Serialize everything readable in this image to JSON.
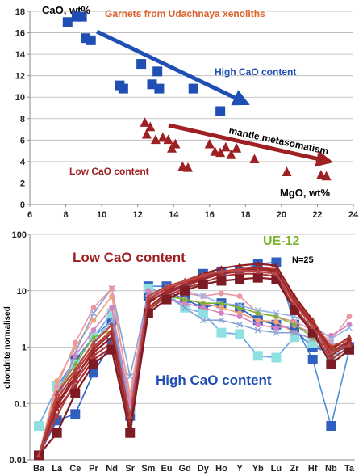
{
  "chart_data": [
    {
      "type": "scatter",
      "title": "Garnets from Udachnaya xenoliths",
      "ylabel": "CaO, wt%",
      "xlabel": "MgO, wt%",
      "xlim": [
        6,
        24
      ],
      "ylim": [
        0,
        18
      ],
      "xticks": [
        "6",
        "8",
        "10",
        "12",
        "14",
        "16",
        "18",
        "20",
        "22",
        "24"
      ],
      "yticks": [
        "0",
        "2",
        "4",
        "6",
        "8",
        "10",
        "12",
        "14",
        "16",
        "18"
      ],
      "grid": "horizontal",
      "annotations": {
        "high": "High CaO content",
        "low": "Low CaO content",
        "trend": "mantle metasomatism"
      },
      "series": [
        {
          "name": "High CaO content",
          "color": "#1f4fb4",
          "marker": "square",
          "points": [
            [
              8.1,
              17.0
            ],
            [
              8.6,
              17.5
            ],
            [
              8.9,
              17.5
            ],
            [
              9.1,
              15.5
            ],
            [
              9.4,
              15.3
            ],
            [
              11.0,
              11.1
            ],
            [
              11.2,
              10.8
            ],
            [
              12.2,
              13.1
            ],
            [
              12.8,
              11.2
            ],
            [
              13.1,
              12.4
            ],
            [
              13.2,
              10.8
            ],
            [
              15.1,
              10.8
            ],
            [
              16.6,
              8.7
            ]
          ]
        },
        {
          "name": "Low CaO content",
          "color": "#9e2023",
          "marker": "triangle",
          "points": [
            [
              12.4,
              7.6
            ],
            [
              12.5,
              6.5
            ],
            [
              12.7,
              7.2
            ],
            [
              13.0,
              6.0
            ],
            [
              13.4,
              6.2
            ],
            [
              13.7,
              6.0
            ],
            [
              13.9,
              5.2
            ],
            [
              14.1,
              5.6
            ],
            [
              14.5,
              3.5
            ],
            [
              14.8,
              3.4
            ],
            [
              16.0,
              5.6
            ],
            [
              16.3,
              4.9
            ],
            [
              16.6,
              4.8
            ],
            [
              16.9,
              5.3
            ],
            [
              17.2,
              4.6
            ],
            [
              17.5,
              5.2
            ],
            [
              18.5,
              4.2
            ],
            [
              20.3,
              3.0
            ],
            [
              22.2,
              2.7
            ],
            [
              22.5,
              2.6
            ]
          ]
        }
      ]
    },
    {
      "type": "line",
      "yscale": "log",
      "ylabel": "chondrite normalised",
      "ylim": [
        0.01,
        100
      ],
      "yticks": [
        "0.01",
        "0.1",
        "1",
        "10",
        "100"
      ],
      "grid": "horizontal",
      "categories": [
        "Ba",
        "La",
        "Ce",
        "Pr",
        "Nd",
        "Sr",
        "Sm",
        "Eu",
        "Gd",
        "Dy",
        "Ho",
        "Y",
        "Yb",
        "Lu",
        "Zr",
        "Hf",
        "Nb",
        "Ta"
      ],
      "annotations": {
        "low": "Low CaO content",
        "high": "High CaO content",
        "sample": "UE-12",
        "count": "N=25"
      },
      "series": [
        {
          "group": "low",
          "marker": "triangle",
          "values": [
            0.012,
            0.08,
            0.2,
            0.6,
            1.0,
            0.035,
            5,
            9,
            12,
            16,
            20,
            22,
            24,
            22,
            6,
            2.5,
            0.7,
            1.2
          ]
        },
        {
          "group": "low",
          "marker": "triangle",
          "values": [
            0.012,
            0.1,
            0.3,
            0.8,
            1.5,
            0.04,
            6,
            10,
            15,
            20,
            25,
            28,
            30,
            28,
            8,
            3,
            0.9,
            1.5
          ]
        },
        {
          "group": "low",
          "marker": "triangle",
          "values": [
            0.012,
            0.06,
            0.25,
            0.7,
            1.2,
            0.03,
            4.5,
            8,
            11,
            14,
            18,
            20,
            20,
            18,
            5,
            2,
            0.6,
            1.0
          ]
        },
        {
          "group": "low",
          "marker": "triangle",
          "values": [
            0.012,
            0.12,
            0.35,
            1.0,
            2.0,
            0.05,
            7,
            11,
            14,
            18,
            22,
            24,
            26,
            24,
            7,
            2.8,
            1.0,
            1.4
          ]
        },
        {
          "group": "low",
          "marker": "triangle",
          "values": [
            0.012,
            0.09,
            0.28,
            0.9,
            1.8,
            0.045,
            6.5,
            9.5,
            13,
            17,
            21,
            23,
            25,
            23,
            6.5,
            2.6,
            0.8,
            1.3
          ]
        },
        {
          "group": "low",
          "marker": "square",
          "values": [
            0.012,
            0.03,
            0.15,
            0.5,
            0.9,
            0.03,
            4,
            7,
            10,
            13,
            15,
            16,
            17,
            16,
            4.5,
            1.8,
            0.5,
            0.9
          ]
        },
        {
          "group": "low",
          "marker": "triangle",
          "values": [
            0.012,
            0.15,
            0.4,
            1.2,
            2.5,
            0.06,
            8,
            12,
            15,
            19,
            22,
            23,
            22,
            20,
            6,
            2.3,
            0.8,
            1.1
          ]
        },
        {
          "group": "high",
          "marker": "square",
          "values": [
            0.012,
            0.2,
            0.6,
            1.5,
            3,
            0.09,
            12,
            12,
            10,
            20,
            22,
            22,
            30,
            32,
            2.5,
            0.6,
            0.04,
            0.9
          ]
        },
        {
          "group": "high",
          "marker": "square",
          "values": [
            0.012,
            0.05,
            0.065,
            0.35,
            1.2,
            0.06,
            8,
            10,
            7,
            5,
            6,
            5,
            3,
            2.5,
            2,
            1,
            0.8,
            1.0
          ]
        },
        {
          "group": "high",
          "marker": "square",
          "values": [
            0.04,
            0.2,
            0.5,
            1.5,
            4,
            0.08,
            11,
            9,
            5,
            4,
            1.8,
            1.7,
            0.7,
            0.65,
            1.5,
            1.2,
            0.7,
            0.9
          ]
        },
        {
          "group": "high",
          "marker": "circle",
          "values": [
            0.012,
            0.25,
            1.0,
            3,
            8,
            0.15,
            10,
            9,
            7,
            6,
            5,
            4,
            3,
            2.8,
            1.8,
            1.4,
            1.1,
            1.0
          ]
        },
        {
          "group": "high",
          "marker": "cross",
          "values": [
            0.012,
            0.1,
            0.8,
            4,
            11,
            0.3,
            9,
            8,
            5,
            3,
            3,
            2.5,
            2,
            1.8,
            1.8,
            1.4,
            1.2,
            1.0
          ]
        },
        {
          "group": "high",
          "marker": "circle",
          "values": [
            0.012,
            0.2,
            1.2,
            5,
            11,
            0.12,
            8,
            10,
            9,
            8,
            9,
            8,
            4,
            3.5,
            2.8,
            2,
            1.3,
            3.5
          ]
        },
        {
          "group": "high",
          "marker": "circle",
          "values": [
            0.012,
            0.15,
            0.7,
            2,
            5,
            0.1,
            10,
            7,
            6,
            5,
            4,
            3.5,
            2.5,
            2.2,
            2.4,
            1.8,
            1.6,
            2.5
          ]
        },
        {
          "group": "high",
          "marker": "cross",
          "values": [
            0.012,
            0.08,
            0.4,
            1.2,
            3,
            0.05,
            7,
            12,
            10,
            8,
            6,
            5.5,
            4.5,
            4,
            3.5,
            2.5,
            1.4,
            2.2
          ]
        },
        {
          "group": "ue12",
          "marker": "triangle",
          "values": [
            0.012,
            0.15,
            0.5,
            1.5,
            2,
            0.04,
            5,
            8,
            7,
            6,
            6,
            5,
            4,
            3.5,
            2.5,
            1.5,
            0.9,
            1.0
          ]
        }
      ]
    }
  ]
}
